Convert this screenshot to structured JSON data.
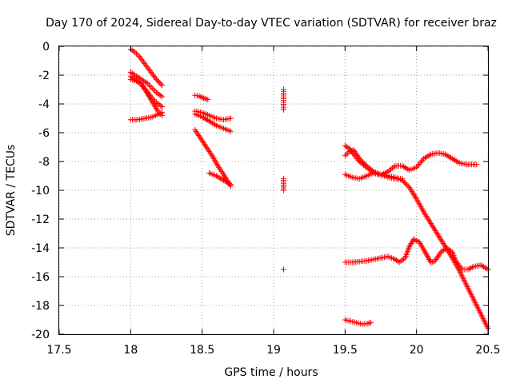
{
  "chart_data": {
    "type": "scatter",
    "title": "Day 170 of 2024, Sidereal Day-to-day VTEC variation (SDTVAR) for receiver braz",
    "xlabel": "GPS time / hours",
    "ylabel": "SDTVAR / TECUs",
    "xlim": [
      17.5,
      20.5
    ],
    "ylim": [
      -20,
      0
    ],
    "xticks": [
      "17.5",
      "18",
      "18.5",
      "19",
      "19.5",
      "20",
      "20.5"
    ],
    "yticks": [
      "0",
      "-2",
      "-4",
      "-6",
      "-8",
      "-10",
      "-12",
      "-14",
      "-16",
      "-18",
      "-20"
    ],
    "grid": true,
    "legend": "none",
    "marker": "plus",
    "color": "#ff0000",
    "series": [
      {
        "points": [
          [
            18.0,
            -0.2
          ],
          [
            18.03,
            -0.4
          ],
          [
            18.06,
            -0.7
          ],
          [
            18.09,
            -1.1
          ],
          [
            18.12,
            -1.5
          ],
          [
            18.15,
            -1.9
          ],
          [
            18.18,
            -2.3
          ],
          [
            18.22,
            -2.7
          ]
        ]
      },
      {
        "points": [
          [
            18.0,
            -1.8
          ],
          [
            18.03,
            -2.0
          ],
          [
            18.06,
            -2.2
          ],
          [
            18.09,
            -2.4
          ],
          [
            18.12,
            -2.6
          ],
          [
            18.15,
            -2.9
          ],
          [
            18.18,
            -3.2
          ],
          [
            18.22,
            -3.5
          ]
        ]
      },
      {
        "points": [
          [
            18.0,
            -2.1
          ],
          [
            18.03,
            -2.3
          ],
          [
            18.06,
            -2.5
          ],
          [
            18.09,
            -2.8
          ],
          [
            18.12,
            -3.2
          ],
          [
            18.15,
            -3.6
          ],
          [
            18.18,
            -3.9
          ],
          [
            18.22,
            -4.2
          ]
        ]
      },
      {
        "points": [
          [
            18.0,
            -2.3
          ],
          [
            18.04,
            -2.4
          ],
          [
            18.07,
            -2.6
          ],
          [
            18.1,
            -3.0
          ],
          [
            18.13,
            -3.5
          ],
          [
            18.16,
            -4.0
          ],
          [
            18.19,
            -4.5
          ],
          [
            18.22,
            -4.8
          ]
        ]
      },
      {
        "points": [
          [
            18.0,
            -5.1
          ],
          [
            18.05,
            -5.1
          ],
          [
            18.1,
            -5.0
          ],
          [
            18.15,
            -4.9
          ],
          [
            18.2,
            -4.7
          ],
          [
            18.22,
            -4.6
          ]
        ]
      },
      {
        "points": [
          [
            18.45,
            -3.4
          ],
          [
            18.48,
            -3.45
          ],
          [
            18.51,
            -3.6
          ],
          [
            18.54,
            -3.7
          ]
        ]
      },
      {
        "points": [
          [
            18.45,
            -4.5
          ],
          [
            18.5,
            -4.6
          ],
          [
            18.55,
            -4.8
          ],
          [
            18.6,
            -5.0
          ],
          [
            18.65,
            -5.1
          ],
          [
            18.7,
            -5.0
          ]
        ]
      },
      {
        "points": [
          [
            18.45,
            -4.7
          ],
          [
            18.5,
            -4.9
          ],
          [
            18.55,
            -5.2
          ],
          [
            18.6,
            -5.5
          ],
          [
            18.65,
            -5.7
          ],
          [
            18.7,
            -5.9
          ]
        ]
      },
      {
        "points": [
          [
            18.45,
            -5.8
          ],
          [
            18.49,
            -6.4
          ],
          [
            18.53,
            -7.0
          ],
          [
            18.57,
            -7.6
          ],
          [
            18.61,
            -8.3
          ],
          [
            18.65,
            -8.9
          ],
          [
            18.68,
            -9.4
          ],
          [
            18.7,
            -9.7
          ]
        ]
      },
      {
        "points": [
          [
            18.55,
            -8.8
          ],
          [
            18.6,
            -9.0
          ],
          [
            18.65,
            -9.3
          ],
          [
            18.7,
            -9.6
          ]
        ]
      },
      {
        "points": [
          [
            19.07,
            -3.0
          ],
          [
            19.07,
            -4.4
          ],
          [
            19.07,
            -9.2
          ],
          [
            19.07,
            -10.0
          ],
          [
            19.07,
            -15.5
          ]
        ]
      },
      {
        "points": [
          [
            19.5,
            -7.6
          ],
          [
            19.53,
            -7.3
          ],
          [
            19.56,
            -7.2
          ],
          [
            19.6,
            -7.8
          ],
          [
            19.65,
            -8.3
          ],
          [
            19.7,
            -8.7
          ],
          [
            19.75,
            -8.9
          ],
          [
            19.8,
            -9.0
          ],
          [
            19.85,
            -9.1
          ],
          [
            19.9,
            -9.3
          ],
          [
            19.95,
            -9.8
          ],
          [
            20.0,
            -10.6
          ],
          [
            20.05,
            -11.5
          ],
          [
            20.1,
            -12.3
          ],
          [
            20.15,
            -13.1
          ],
          [
            20.2,
            -13.9
          ],
          [
            20.25,
            -14.7
          ],
          [
            20.3,
            -15.6
          ],
          [
            20.35,
            -16.6
          ],
          [
            20.4,
            -17.6
          ],
          [
            20.45,
            -18.6
          ],
          [
            20.5,
            -19.6
          ]
        ]
      },
      {
        "points": [
          [
            19.5,
            -6.9
          ],
          [
            19.53,
            -7.1
          ],
          [
            19.56,
            -7.5
          ],
          [
            19.6,
            -8.0
          ],
          [
            19.65,
            -8.4
          ],
          [
            19.7,
            -8.8
          ],
          [
            19.75,
            -8.95
          ],
          [
            19.8,
            -8.7
          ],
          [
            19.85,
            -8.3
          ],
          [
            19.9,
            -8.3
          ],
          [
            19.95,
            -8.6
          ],
          [
            20.0,
            -8.4
          ],
          [
            20.05,
            -7.8
          ],
          [
            20.1,
            -7.5
          ],
          [
            20.15,
            -7.4
          ],
          [
            20.2,
            -7.5
          ],
          [
            20.25,
            -7.8
          ],
          [
            20.3,
            -8.1
          ],
          [
            20.35,
            -8.2
          ],
          [
            20.42,
            -8.2
          ]
        ]
      },
      {
        "points": [
          [
            19.5,
            -8.9
          ],
          [
            19.55,
            -9.1
          ],
          [
            19.6,
            -9.2
          ],
          [
            19.65,
            -9.0
          ],
          [
            19.7,
            -8.8
          ],
          [
            19.75,
            -8.9
          ],
          [
            19.8,
            -9.1
          ],
          [
            19.85,
            -9.2
          ],
          [
            19.9,
            -9.2
          ]
        ]
      },
      {
        "points": [
          [
            19.5,
            -15.0
          ],
          [
            19.55,
            -15.0
          ],
          [
            19.6,
            -14.95
          ],
          [
            19.65,
            -14.9
          ],
          [
            19.7,
            -14.8
          ],
          [
            19.75,
            -14.7
          ],
          [
            19.8,
            -14.6
          ],
          [
            19.85,
            -14.8
          ],
          [
            19.88,
            -15.0
          ],
          [
            19.92,
            -14.7
          ],
          [
            19.95,
            -13.9
          ],
          [
            19.98,
            -13.4
          ],
          [
            20.02,
            -13.6
          ],
          [
            20.06,
            -14.3
          ],
          [
            20.1,
            -15.0
          ],
          [
            20.13,
            -14.9
          ],
          [
            20.17,
            -14.3
          ],
          [
            20.21,
            -14.0
          ],
          [
            20.25,
            -14.3
          ],
          [
            20.28,
            -15.0
          ],
          [
            20.32,
            -15.5
          ],
          [
            20.36,
            -15.5
          ],
          [
            20.4,
            -15.3
          ],
          [
            20.45,
            -15.2
          ],
          [
            20.5,
            -15.5
          ]
        ]
      },
      {
        "points": [
          [
            19.5,
            -19.0
          ],
          [
            19.54,
            -19.1
          ],
          [
            19.58,
            -19.2
          ],
          [
            19.62,
            -19.3
          ],
          [
            19.66,
            -19.25
          ],
          [
            19.68,
            -19.2
          ]
        ]
      }
    ]
  }
}
